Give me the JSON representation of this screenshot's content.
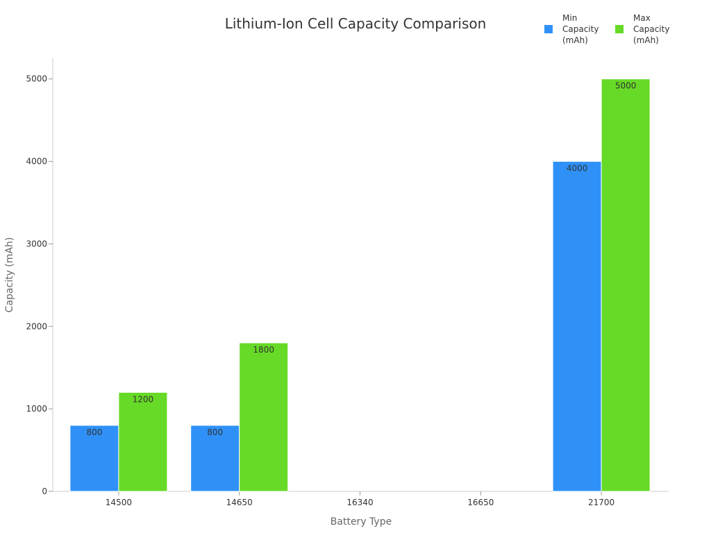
{
  "chart_data": {
    "type": "bar",
    "title": "Lithium-Ion Cell Capacity Comparison",
    "xlabel": "Battery Type",
    "ylabel": "Capacity (mAh)",
    "categories": [
      "14500",
      "14650",
      "16340",
      "16650",
      "21700"
    ],
    "series": [
      {
        "name": "Min Capacity (mAh)",
        "color": "#2f91f7",
        "values": [
          800,
          800,
          null,
          null,
          4000
        ]
      },
      {
        "name": "Max Capacity (mAh)",
        "color": "#66da26",
        "values": [
          1200,
          1800,
          null,
          null,
          5000
        ]
      }
    ],
    "ylim": [
      0,
      5250
    ],
    "yticks": [
      0,
      1000,
      2000,
      3000,
      4000,
      5000
    ],
    "grid": false,
    "legend_position": "top-right",
    "data_labels": true
  }
}
